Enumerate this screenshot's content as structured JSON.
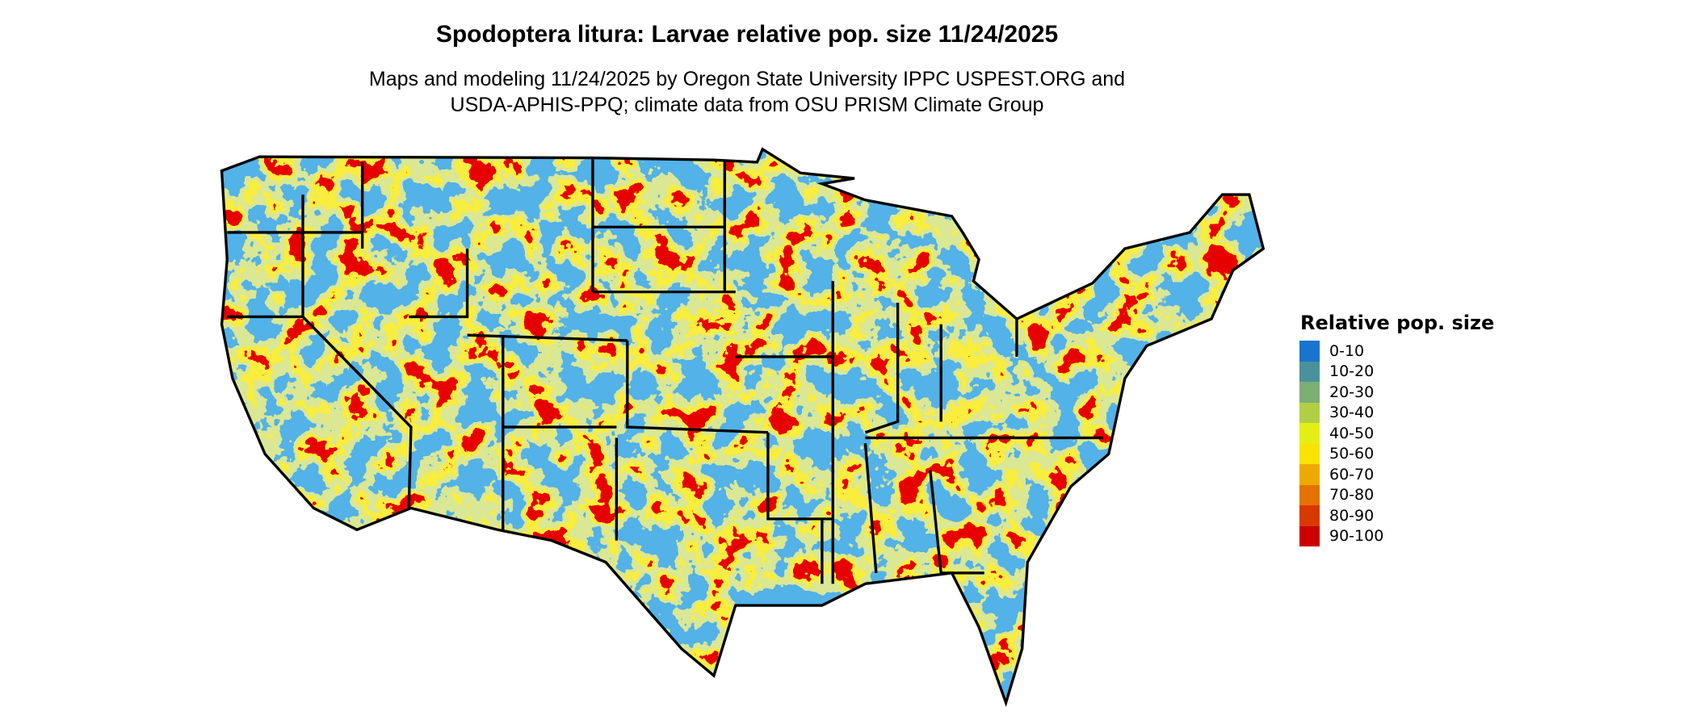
{
  "title": "Spodoptera litura: Larvae relative pop. size 11/24/2025",
  "subtitle_line1": "Maps and modeling 11/24/2025 by Oregon State University IPPC USPEST.ORG and",
  "subtitle_line2": "USDA-APHIS-PPQ; climate data from OSU PRISM Climate Group",
  "chart_data": {
    "type": "map",
    "region": "contiguous United States",
    "legend": {
      "title": "Relative pop. size",
      "placement": "right",
      "items": [
        {
          "label": "0-10",
          "color": "#1874CD"
        },
        {
          "label": "10-20",
          "color": "#4A919E"
        },
        {
          "label": "20-30",
          "color": "#7BAF73"
        },
        {
          "label": "30-40",
          "color": "#B0CF45"
        },
        {
          "label": "40-50",
          "color": "#E3EF14"
        },
        {
          "label": "50-60",
          "color": "#F9E200"
        },
        {
          "label": "60-70",
          "color": "#EEA900"
        },
        {
          "label": "70-80",
          "color": "#E47100"
        },
        {
          "label": "80-90",
          "color": "#D93800"
        },
        {
          "label": "90-100",
          "color": "#CD0000"
        }
      ]
    }
  }
}
